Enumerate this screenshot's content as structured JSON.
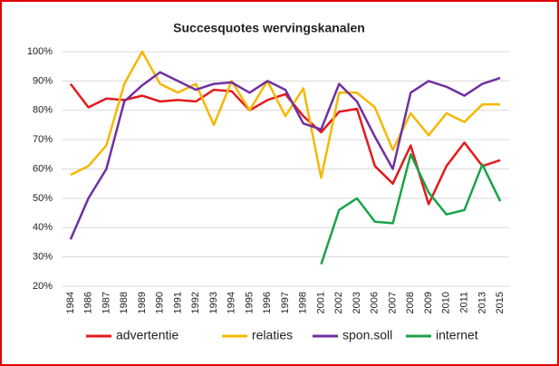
{
  "chart_data": {
    "type": "line",
    "title": "Succesquotes wervingskanalen",
    "categories": [
      "1984",
      "1986",
      "1987",
      "1988",
      "1989",
      "1990",
      "1991",
      "1992",
      "1993",
      "1994",
      "1995",
      "1996",
      "1997",
      "1998",
      "2001",
      "2002",
      "2003",
      "2006",
      "2007",
      "2008",
      "2009",
      "2010",
      "2011",
      "2013",
      "2015"
    ],
    "series": [
      {
        "name": "advertentie",
        "color": "#e31a1c",
        "values": [
          89,
          81,
          84,
          83.5,
          85,
          83,
          83.5,
          83,
          87,
          86.5,
          80,
          83.5,
          85.5,
          78,
          72.5,
          79.5,
          80.5,
          61,
          55,
          68,
          48,
          61,
          69,
          61,
          63
        ]
      },
      {
        "name": "relaties",
        "color": "#f5b800",
        "values": [
          58,
          61,
          68,
          89,
          100,
          89,
          86,
          89,
          75,
          90,
          80,
          90,
          78,
          87.5,
          57,
          86,
          86,
          81,
          66.5,
          79,
          71.5,
          79,
          76,
          82,
          82
        ]
      },
      {
        "name": "spon.soll",
        "color": "#7030a0",
        "values": [
          36,
          50,
          60,
          83,
          88.5,
          93,
          90,
          87,
          89,
          89.5,
          86,
          90,
          87,
          75.5,
          73.5,
          89,
          83,
          71,
          60,
          86,
          90,
          88,
          85,
          89,
          91
        ]
      },
      {
        "name": "internet",
        "color": "#1aa34a",
        "values": [
          null,
          null,
          null,
          null,
          null,
          null,
          null,
          null,
          null,
          null,
          null,
          null,
          null,
          null,
          27.5,
          46,
          50,
          42,
          41.5,
          65,
          52,
          44.5,
          46,
          61.5,
          49
        ]
      }
    ],
    "ylim": [
      20,
      100
    ],
    "yticks": [
      {
        "value": 20,
        "label": "20%"
      },
      {
        "value": 30,
        "label": "30%"
      },
      {
        "value": 40,
        "label": "40%"
      },
      {
        "value": 50,
        "label": "50%"
      },
      {
        "value": 60,
        "label": "60%"
      },
      {
        "value": 70,
        "label": "70%"
      },
      {
        "value": 80,
        "label": "80%"
      },
      {
        "value": 90,
        "label": "90%"
      },
      {
        "value": 100,
        "label": "100%"
      }
    ],
    "grid": true,
    "legend": "bottom"
  }
}
